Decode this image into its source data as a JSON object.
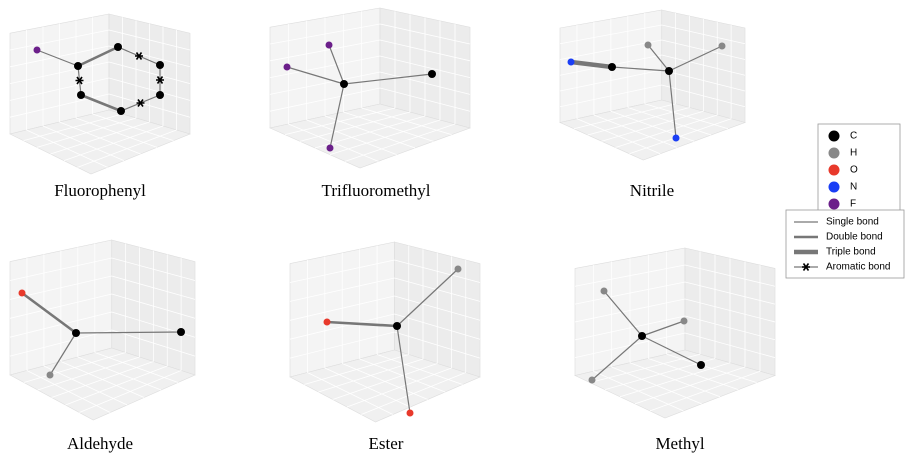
{
  "panels": [
    {
      "label": "Fluorophenyl"
    },
    {
      "label": "Trifluoromethyl"
    },
    {
      "label": "Nitrile"
    },
    {
      "label": "Aldehyde"
    },
    {
      "label": "Ester"
    },
    {
      "label": "Methyl"
    }
  ],
  "atom_legend": [
    "C",
    "H",
    "O",
    "N",
    "F"
  ],
  "bond_legend": [
    "Single bond",
    "Double bond",
    "Triple bond",
    "Aromatic bond"
  ]
}
